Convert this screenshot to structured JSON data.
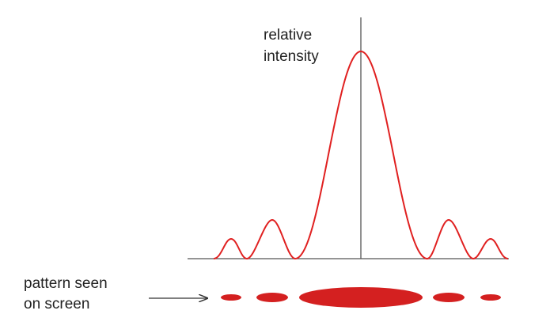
{
  "intensity_label": {
    "lines": [
      "relative",
      "intensity"
    ]
  },
  "pattern_label": {
    "lines": [
      "pattern seen",
      "on screen"
    ]
  }
}
